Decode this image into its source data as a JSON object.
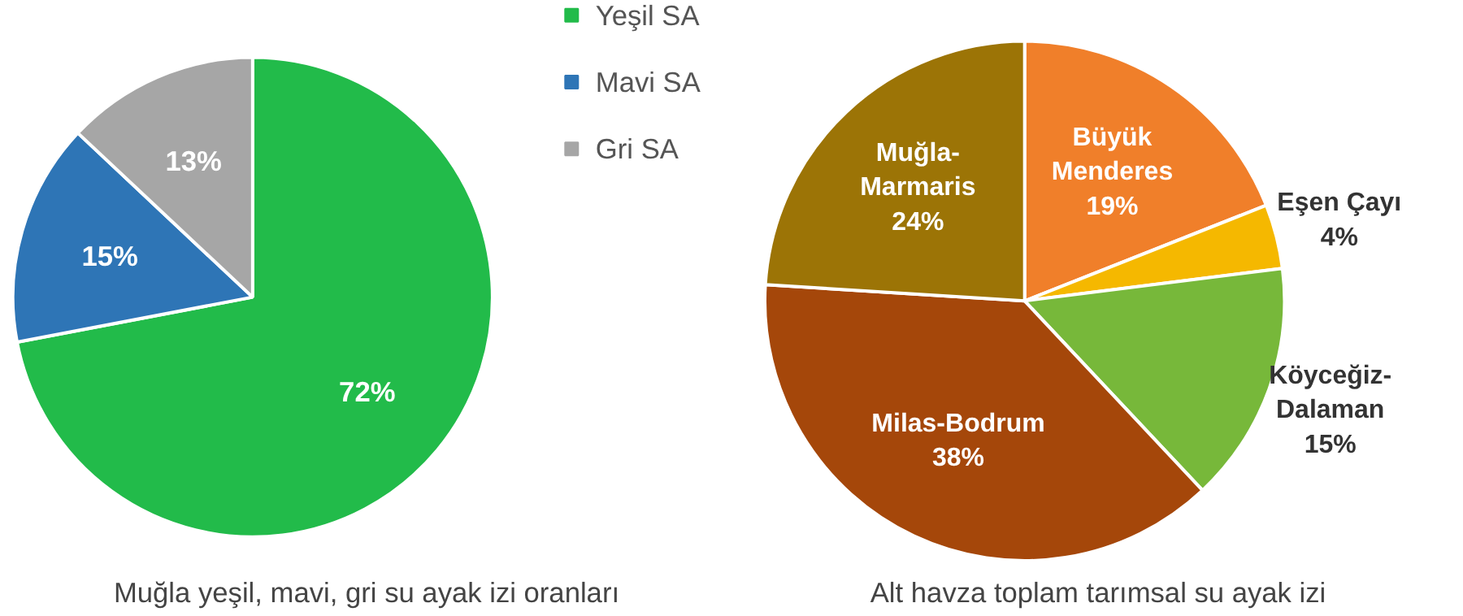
{
  "chart_data": [
    {
      "type": "pie",
      "title": "Muğla yeşil, mavi, gri su ayak izi oranları",
      "categories": [
        "Yeşil SA",
        "Mavi SA",
        "Gri SA"
      ],
      "values": [
        72,
        15,
        13
      ],
      "colors": [
        "#22bb4a",
        "#2e75b6",
        "#a6a6a6"
      ],
      "legend": "top right",
      "value_labels": [
        "72%",
        "15%",
        "13%"
      ]
    },
    {
      "type": "pie",
      "title": "Alt havza toplam tarımsal su ayak izi",
      "categories": [
        "Büyük Menderes",
        "Eşen Çayı",
        "Köyceğiz-Dalaman",
        "Milas-Bodrum",
        "Muğla-Marmaris"
      ],
      "values": [
        19,
        4,
        15,
        38,
        24
      ],
      "colors": [
        "#f07f2a",
        "#f5b800",
        "#77b83a",
        "#a5470a",
        "#9c7406"
      ],
      "legend": false,
      "value_labels": [
        "19%",
        "4%",
        "15%",
        "38%",
        "24%"
      ]
    }
  ]
}
